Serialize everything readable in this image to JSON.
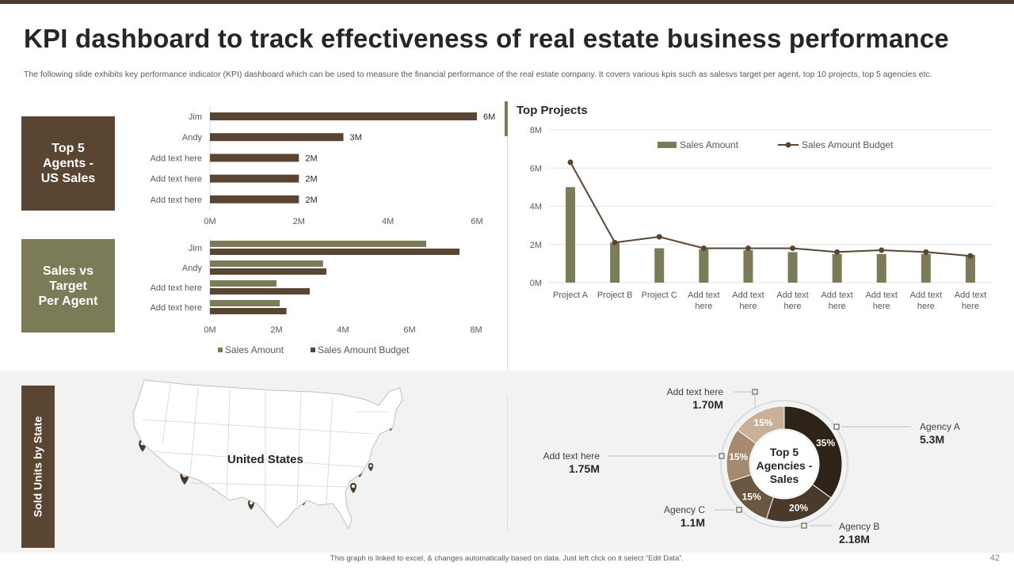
{
  "slide": {
    "title": "KPI dashboard to track effectiveness of real estate business performance",
    "subtitle": "The following slide exhibits key performance indicator (KPI) dashboard which can be used to measure the financial performance of the real estate company. It covers various kpis such as salesvs target per agent, top 10 projects, top 5 agencies etc.",
    "footer": "This graph is linked to excel, & changes automatically  based on data. Just left click on it select “Edit Data”.",
    "page_number": "42"
  },
  "panels": {
    "agents_label": "Top 5\nAgents -\nUS Sales",
    "target_label": "Sales vs\nTarget\nPer Agent",
    "sold_label": "Sold Units by State",
    "top_projects_title": "Top Projects",
    "map_label": "United States"
  },
  "colors": {
    "dark_brown": "#5a4533",
    "olive": "#7b7c57",
    "olive_light": "#7b7c57",
    "budget_dark": "#5a4533",
    "line": "#5a4533"
  },
  "chart_data": [
    {
      "id": "top5_agents",
      "type": "bar",
      "orientation": "horizontal",
      "categories": [
        "Jim",
        "Andy",
        "Add text here",
        "Add text here",
        "Add text here"
      ],
      "values": [
        6,
        3,
        2,
        2,
        2
      ],
      "value_labels": [
        "6M",
        "3M",
        "2M",
        "2M",
        "2M"
      ],
      "xlim": [
        0,
        6
      ],
      "ticks": [
        0,
        2,
        4,
        6
      ],
      "tick_labels": [
        "0M",
        "2M",
        "4M",
        "6M"
      ]
    },
    {
      "id": "sales_vs_target",
      "type": "bar",
      "orientation": "horizontal",
      "categories": [
        "Jim",
        "Andy",
        "Add text here",
        "Add text here"
      ],
      "series": [
        {
          "name": "Sales Amount",
          "values": [
            6.5,
            3.4,
            2.0,
            2.1
          ]
        },
        {
          "name": "Sales Amount Budget",
          "values": [
            7.5,
            3.5,
            3.0,
            2.3
          ]
        }
      ],
      "xlim": [
        0,
        8
      ],
      "ticks": [
        0,
        2,
        4,
        6,
        8
      ],
      "tick_labels": [
        "0M",
        "2M",
        "4M",
        "6M",
        "8M"
      ],
      "legend": "bottom"
    },
    {
      "id": "top_projects",
      "type": "bar",
      "title": "Top Projects",
      "categories": [
        "Project A",
        "Project B",
        "Project C",
        "Add text here",
        "Add text here",
        "Add text here",
        "Add text here",
        "Add text here",
        "Add text here",
        "Add text here"
      ],
      "series": [
        {
          "name": "Sales Amount",
          "kind": "bar",
          "values": [
            5.0,
            2.1,
            1.8,
            1.75,
            1.7,
            1.6,
            1.5,
            1.5,
            1.5,
            1.45
          ]
        },
        {
          "name": "Sales Amount Budget",
          "kind": "line",
          "values": [
            6.3,
            2.1,
            2.4,
            1.8,
            1.8,
            1.8,
            1.6,
            1.7,
            1.6,
            1.4
          ]
        }
      ],
      "ylim": [
        0,
        8
      ],
      "ticks": [
        0,
        2,
        4,
        6,
        8
      ],
      "tick_labels": [
        "0M",
        "2M",
        "4M",
        "6M",
        "8M"
      ],
      "legend": "top"
    },
    {
      "id": "top5_agencies",
      "type": "pie",
      "title": "Top 5 Agencies - Sales",
      "center_label": "Top 5\nAgencies -\nSales",
      "slices": [
        {
          "name": "Agency A",
          "value": 35,
          "label": "35%",
          "amount": "5.3M",
          "color": "#2e2319"
        },
        {
          "name": "Agency B",
          "value": 20,
          "label": "20%",
          "amount": "2.18M",
          "color": "#4a3a2b"
        },
        {
          "name": "Agency C",
          "value": 15,
          "label": "15%",
          "amount": "1.1M",
          "color": "#6b5642"
        },
        {
          "name": "Add text here",
          "value": 15,
          "label": "15%",
          "amount": "1.75M",
          "color": "#a68a70"
        },
        {
          "name": "Add text here",
          "value": 15,
          "label": "15%",
          "amount": "1.70M",
          "color": "#c9b09a"
        }
      ]
    }
  ]
}
